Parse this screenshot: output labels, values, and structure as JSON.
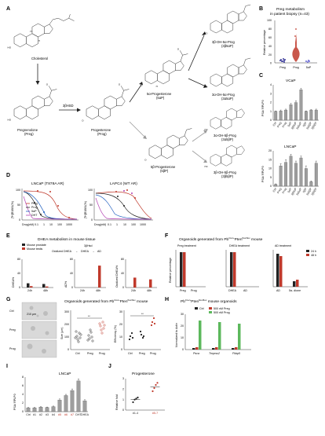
{
  "panel_letters": {
    "A": "A",
    "B": "B",
    "C": "C",
    "D": "D",
    "E": "E",
    "F": "F",
    "G": "G",
    "H": "H",
    "I": "I",
    "J": "J"
  },
  "panelA": {
    "compounds": {
      "cholesterol": "Cholesterol",
      "preg": [
        "Pregnenolone",
        "(Preg)"
      ],
      "prog": [
        "Progesterone",
        "(Prog)"
      ],
      "five_a": [
        "5α-Progesterone",
        "(5αP)"
      ],
      "five_b": [
        "5β-Progesterone",
        "(5βP)"
      ],
      "bo5a": [
        "3β-OH-5α-Prog",
        "(3β5αP)"
      ],
      "ao5a": [
        "3α-OH-5α-Prog",
        "(3α5αP)"
      ],
      "ao5b": [
        "3α-OH-5β-Prog",
        "(3α5βP)"
      ],
      "bo5b": [
        "3β-OH-5β-Prog",
        "(3β5βP)"
      ]
    },
    "enzyme": "3βHSD"
  },
  "panelB": {
    "title": [
      "Preg metabolism",
      "in patient biopsy (n=43)"
    ],
    "ylabel": "Relative percentage",
    "categories": [
      "Preg",
      "Prog",
      "5αP"
    ],
    "yticks": [
      "0",
      "20",
      "40",
      "60",
      "80",
      "100"
    ],
    "colors": {
      "preg": "#3a3a9a",
      "prog": "#c0392b",
      "fiveaP": "#6b6bd6"
    }
  },
  "panelC": {
    "vcap": {
      "title": "VCaP",
      "ylabel": "PSA/ RPLP0",
      "categories": [
        "Ctrl",
        "Preg",
        "Prog",
        "5αP",
        "3β5αP",
        "3α5αP",
        "5βP",
        "3α5βP",
        "3β5βP"
      ],
      "values": [
        1.0,
        1.05,
        1.15,
        1.75,
        2.0,
        3.45,
        1.0,
        1.15,
        1.15
      ],
      "errors": [
        0.05,
        0.1,
        0.1,
        0.15,
        0.2,
        0.15,
        0.05,
        0.05,
        0.1
      ],
      "yticks": [
        "0",
        "1",
        "2",
        "3",
        "4"
      ],
      "ylim": [
        0,
        4
      ]
    },
    "lncap": {
      "title": "LNCaP",
      "ylabel": "PSA/ RPLP0",
      "categories": [
        "Ctrl",
        "Preg",
        "Prog",
        "5αP",
        "3β5αP",
        "3α5αP",
        "5βP",
        "3α5βP",
        "3β5βP"
      ],
      "values": [
        1.0,
        11.5,
        13.5,
        17.0,
        13.0,
        16.0,
        10.0,
        2.5,
        13.0
      ],
      "errors": [
        0.3,
        1.2,
        1.5,
        1.0,
        1.2,
        1.0,
        1.5,
        0.5,
        1.2
      ],
      "yticks": [
        "0",
        "5",
        "10",
        "15",
        "20"
      ],
      "ylim": [
        0,
        20
      ]
    }
  },
  "panelD": {
    "left": {
      "title": "LNCaP (T878A AR)"
    },
    "right": {
      "title": "LAPC4 (WT AR)"
    },
    "ylabel": "[³H]R1881(%)",
    "xlabel": "Drug(nM)",
    "xticks": [
      "0.1",
      "1",
      "10",
      "100",
      "1000"
    ],
    "yticks": [
      "0",
      "50",
      "100"
    ],
    "legend": [
      {
        "name": "Preg",
        "color": "#c0392b"
      },
      {
        "name": "Prog",
        "color": "#222222"
      },
      {
        "name": "5αP",
        "color": "#1f5fbf"
      },
      {
        "name": "DHT",
        "color": "#b23fb2"
      }
    ]
  },
  "panelE": {
    "title": "DHEA metabolism in mouse tissue",
    "pathway": {
      "a": "Oxidized DHEA",
      "b": "DHEA",
      "c": "AD",
      "enzyme": "3βHsd"
    },
    "legend": [
      {
        "name": "Mouse prostate",
        "color": "#222222"
      },
      {
        "name": "Mouse testis",
        "color": "#c0392b"
      }
    ],
    "plots": [
      {
        "ylabel": "DHEA%",
        "xticks": [
          "24h",
          "48h"
        ],
        "yticks": [
          "0",
          "40",
          "80"
        ]
      },
      {
        "ylabel": "AD%",
        "xticks": [
          "24h",
          "48h"
        ],
        "yticks": [
          "0",
          "40",
          "80"
        ]
      },
      {
        "ylabel": "Oxidized DHEA%",
        "xticks": [
          "24h",
          "48h"
        ],
        "yticks": [
          "0",
          "40",
          "80"
        ]
      }
    ]
  },
  "panelF": {
    "title": {
      "pre": "Organoids generated from",
      "genotype_a": "Pb",
      "sup_a": "Cre/+",
      "genotype_b": "Pten",
      "sup_b": "flox/flox",
      "post": "mouse"
    },
    "sub": [
      "Preg treatment",
      "DHEA treatment",
      "AD treatment"
    ],
    "ylabel": "Relative percentage",
    "legend": [
      {
        "name": "24 h",
        "color": "#222222"
      },
      {
        "name": "48 h",
        "color": "#c0392b"
      }
    ],
    "xlabels": [
      [
        "Preg",
        "Prog"
      ],
      [
        "DHEA",
        "AD"
      ],
      [
        "AD",
        "5α- dione"
      ]
    ]
  },
  "panelG": {
    "images": [
      "Ctrl",
      "Preg",
      "Prog"
    ],
    "scale": "210 μm",
    "title": {
      "pre": "Organoids generated from",
      "genotype_a": "Pb",
      "sup_a": "Cre/+",
      "genotype_b": "Pten",
      "sup_b": "flox/flox",
      "post": "mouse"
    },
    "size": {
      "ylabel": "Size (μm)",
      "xticks": [
        "Ctrl",
        "Preg",
        "Prog"
      ],
      "yticks": [
        "0",
        "100",
        "200",
        "300"
      ],
      "sig": "**"
    },
    "eff": {
      "ylabel": "Efficiency (%)",
      "xticks": [
        "Ctrl",
        "Preg",
        "Prog"
      ],
      "yticks": [
        "0",
        "10",
        "20",
        "30"
      ],
      "sig": "**"
    }
  },
  "panelH": {
    "title": {
      "genotype_a": "Pb",
      "sup_a": "Cre/+",
      "genotype_b": "Pten",
      "sup_b": "flox/flox",
      "post": "mouse organoids"
    },
    "legend": [
      {
        "name": "Ctrl",
        "color": "#222222"
      },
      {
        "name": "500 nM Preg",
        "color": "#c0392b"
      },
      {
        "name": "500 nM Prog",
        "color": "#5cb85c"
      }
    ],
    "ylabel": "Normalized to Actin",
    "genes": [
      "Psca",
      "Tmprss2",
      "Fkbp5"
    ],
    "yticks": [
      "0",
      "10",
      "20",
      "30"
    ]
  },
  "panelI": {
    "title": "LNCaP",
    "ylabel": "PSA/ RPLP0",
    "categories": [
      "Ctrl",
      "#1",
      "#2",
      "#3",
      "#4",
      "#5",
      "#6",
      "#7",
      "DHT",
      "DHEA"
    ],
    "values": [
      1.0,
      1.0,
      1.2,
      1.1,
      1.3,
      3.0,
      4.2,
      5.5,
      8.0,
      2.8
    ],
    "errors": [
      0.1,
      0.1,
      0.1,
      0.1,
      0.15,
      0.3,
      0.3,
      0.4,
      0.5,
      0.3
    ],
    "red_labels": [
      5,
      6,
      7
    ],
    "yticks": [
      "0",
      "2",
      "4",
      "6",
      "8"
    ],
    "ylim": [
      0,
      9
    ]
  },
  "panelJ": {
    "title": "Progesterone",
    "ylabel": "Relative fold",
    "categories": [
      "#1-4",
      "#5-7"
    ],
    "values": [
      1.0,
      2.2
    ],
    "yticks": [
      "0",
      "1",
      "2",
      "3"
    ],
    "ylim": [
      0,
      3
    ]
  }
}
